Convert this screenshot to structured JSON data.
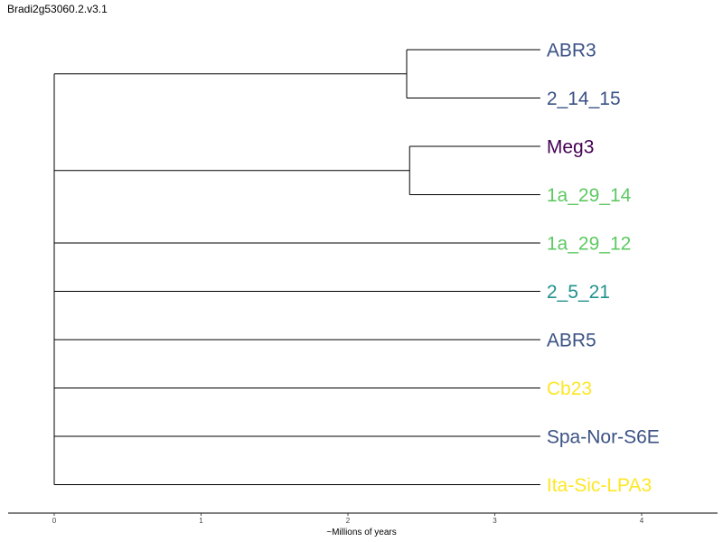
{
  "title": "Bradi2g53060.2.v3.1",
  "xlabel": "~Millions of years",
  "axis": {
    "min": 0,
    "max": 4,
    "ticks": [
      0,
      1,
      2,
      3,
      4
    ]
  },
  "leaf_depth": 3.31,
  "leaves": [
    {
      "name": "ABR3",
      "color": "#3b5284"
    },
    {
      "name": "2_14_15",
      "color": "#3b5284"
    },
    {
      "name": "Meg3",
      "color": "#440154"
    },
    {
      "name": "1a_29_14",
      "color": "#5ec962"
    },
    {
      "name": "1a_29_12",
      "color": "#5ec962"
    },
    {
      "name": "2_5_21",
      "color": "#21918c"
    },
    {
      "name": "ABR5",
      "color": "#3b5284"
    },
    {
      "name": "Cb23",
      "color": "#fde725"
    },
    {
      "name": "Spa-Nor-S6E",
      "color": "#3b5284"
    },
    {
      "name": "Ita-Sic-LPA3",
      "color": "#fde725"
    }
  ],
  "clades": [
    {
      "leaves": [
        0,
        1
      ],
      "node_depth": 2.4
    },
    {
      "leaves": [
        2,
        3
      ],
      "node_depth": 2.42
    }
  ]
}
